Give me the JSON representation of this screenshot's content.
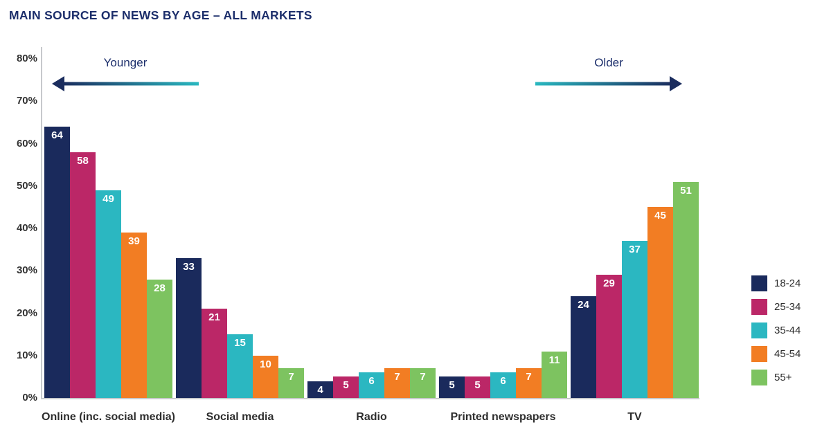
{
  "title": "MAIN SOURCE OF NEWS BY AGE – ALL MARKETS",
  "chart_data": {
    "type": "bar",
    "title": "MAIN SOURCE OF NEWS BY AGE – ALL MARKETS",
    "categories": [
      "Online (inc. social media)",
      "Social media",
      "Radio",
      "Printed newspapers",
      "TV"
    ],
    "series": [
      {
        "name": "18-24",
        "color": "#1a2a5c",
        "values": [
          64,
          33,
          4,
          5,
          24
        ]
      },
      {
        "name": "25-34",
        "color": "#bb2767",
        "values": [
          58,
          21,
          5,
          5,
          29
        ]
      },
      {
        "name": "35-44",
        "color": "#2bb7c1",
        "values": [
          49,
          15,
          6,
          6,
          37
        ]
      },
      {
        "name": "45-54",
        "color": "#f27d23",
        "values": [
          39,
          10,
          7,
          7,
          45
        ]
      },
      {
        "name": "55+",
        "color": "#7dc360",
        "values": [
          28,
          7,
          7,
          11,
          51
        ]
      }
    ],
    "ylim": [
      0,
      80
    ],
    "y_ticks": [
      "80%",
      "70%",
      "60%",
      "50%",
      "40%",
      "30%",
      "20%",
      "10%",
      "0%"
    ],
    "grid": false,
    "value_labels": "inside-top-white",
    "legend_position": "right",
    "annotations": [
      {
        "label": "Younger",
        "direction": "left"
      },
      {
        "label": "Older",
        "direction": "right"
      }
    ],
    "arrow_gradient": {
      "navy": "#1b2d5e",
      "teal": "#2ab8c0"
    }
  }
}
